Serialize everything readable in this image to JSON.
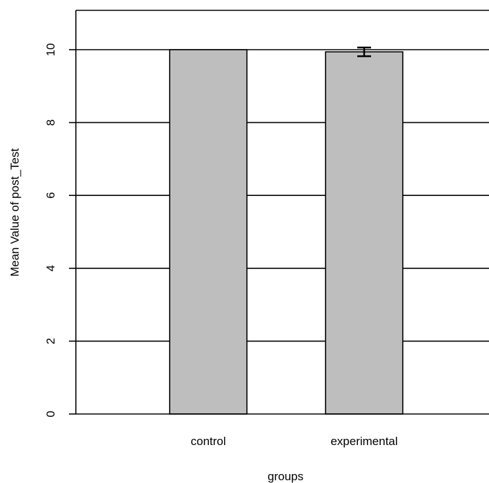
{
  "chart_data": {
    "type": "bar",
    "title": "",
    "xlabel": "groups",
    "ylabel": "Mean Value of post_Test",
    "categories": [
      "control",
      "experimental"
    ],
    "values": [
      10.0,
      9.94
    ],
    "error_bars": [
      null,
      [
        9.82,
        10.06
      ]
    ],
    "ylim": [
      0,
      11
    ],
    "yticks": [
      0,
      2,
      4,
      6,
      8,
      10
    ],
    "ytick_labels": [
      "0",
      "2",
      "4",
      "6",
      "8",
      "10"
    ],
    "grid": "horizontal",
    "legend": "none"
  },
  "colors": {
    "bar_fill": "#bebebe",
    "bar_stroke": "#000000",
    "grid": "#000000",
    "axis": "#000000",
    "background": "#ffffff"
  }
}
